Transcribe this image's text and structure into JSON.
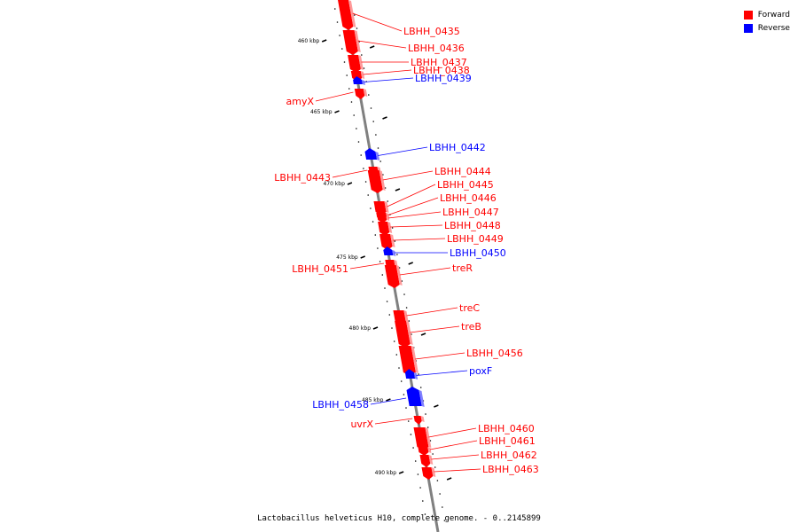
{
  "caption": "Lactobacillus helveticus H10, complete genome. - 0..2145899",
  "legend": [
    {
      "label": "Forward",
      "color": "#ff0000"
    },
    {
      "label": "Reverse",
      "color": "#0000ff"
    }
  ],
  "colors": {
    "forward": "#ff0000",
    "reverse": "#0000ff",
    "backbone": "#808080"
  },
  "ticks": [
    {
      "kbp": 460,
      "label": "460 kbp"
    },
    {
      "kbp": 465,
      "label": "465 kbp"
    },
    {
      "kbp": 470,
      "label": "470 kbp"
    },
    {
      "kbp": 475,
      "label": "475 kbp"
    },
    {
      "kbp": 480,
      "label": "480 kbp"
    },
    {
      "kbp": 485,
      "label": "485 kbp"
    },
    {
      "kbp": 490,
      "label": "490 kbp"
    }
  ],
  "genes": [
    {
      "name": "LBHH_0435",
      "strand": "forward"
    },
    {
      "name": "LBHH_0436",
      "strand": "forward"
    },
    {
      "name": "LBHH_0437",
      "strand": "forward"
    },
    {
      "name": "LBHH_0438",
      "strand": "forward"
    },
    {
      "name": "LBHH_0439",
      "strand": "reverse"
    },
    {
      "name": "amyX",
      "strand": "forward"
    },
    {
      "name": "LBHH_0442",
      "strand": "reverse"
    },
    {
      "name": "LBHH_0443",
      "strand": "forward"
    },
    {
      "name": "LBHH_0444",
      "strand": "forward"
    },
    {
      "name": "LBHH_0445",
      "strand": "forward"
    },
    {
      "name": "LBHH_0446",
      "strand": "forward"
    },
    {
      "name": "LBHH_0447",
      "strand": "forward"
    },
    {
      "name": "LBHH_0448",
      "strand": "forward"
    },
    {
      "name": "LBHH_0449",
      "strand": "forward"
    },
    {
      "name": "LBHH_0450",
      "strand": "reverse"
    },
    {
      "name": "LBHH_0451",
      "strand": "forward"
    },
    {
      "name": "treR",
      "strand": "forward"
    },
    {
      "name": "treC",
      "strand": "forward"
    },
    {
      "name": "treB",
      "strand": "forward"
    },
    {
      "name": "LBHH_0456",
      "strand": "forward"
    },
    {
      "name": "poxF",
      "strand": "reverse"
    },
    {
      "name": "LBHH_0458",
      "strand": "reverse"
    },
    {
      "name": "uvrX",
      "strand": "forward"
    },
    {
      "name": "LBHH_0460",
      "strand": "forward"
    },
    {
      "name": "LBHH_0461",
      "strand": "forward"
    },
    {
      "name": "LBHH_0462",
      "strand": "forward"
    },
    {
      "name": "LBHH_0463",
      "strand": "forward"
    }
  ]
}
